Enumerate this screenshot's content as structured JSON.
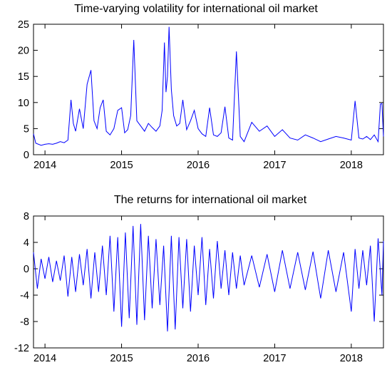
{
  "chart_data": [
    {
      "type": "line",
      "title": "Time-varying volatility for international oil market",
      "xlabel": "",
      "ylabel": "",
      "xlim": [
        2013.85,
        2018.42
      ],
      "ylim": [
        0,
        25
      ],
      "yticks": [
        0,
        5,
        10,
        15,
        20,
        25
      ],
      "xticks": [
        {
          "label": "2014",
          "value": 2014
        },
        {
          "label": "2015",
          "value": 2015
        },
        {
          "label": "2016",
          "value": 2016
        },
        {
          "label": "2017",
          "value": 2017
        },
        {
          "label": "2018",
          "value": 2018
        }
      ],
      "grid": false,
      "color": "#0000ff",
      "x": [
        2013.85,
        2013.88,
        2013.95,
        2014.0,
        2014.05,
        2014.1,
        2014.15,
        2014.2,
        2014.25,
        2014.3,
        2014.34,
        2014.37,
        2014.4,
        2014.45,
        2014.5,
        2014.55,
        2014.6,
        2014.64,
        2014.68,
        2014.72,
        2014.76,
        2014.8,
        2014.85,
        2014.9,
        2014.95,
        2015.0,
        2015.04,
        2015.08,
        2015.12,
        2015.16,
        2015.2,
        2015.25,
        2015.3,
        2015.35,
        2015.4,
        2015.45,
        2015.5,
        2015.53,
        2015.56,
        2015.58,
        2015.6,
        2015.62,
        2015.65,
        2015.68,
        2015.72,
        2015.76,
        2015.8,
        2015.85,
        2015.9,
        2015.95,
        2016.0,
        2016.05,
        2016.1,
        2016.15,
        2016.2,
        2016.25,
        2016.3,
        2016.35,
        2016.4,
        2016.45,
        2016.5,
        2016.55,
        2016.6,
        2016.7,
        2016.8,
        2016.9,
        2017.0,
        2017.1,
        2017.2,
        2017.3,
        2017.4,
        2017.5,
        2017.6,
        2017.7,
        2017.8,
        2017.9,
        2018.0,
        2018.05,
        2018.1,
        2018.15,
        2018.2,
        2018.25,
        2018.3,
        2018.35,
        2018.38,
        2018.4,
        2018.42
      ],
      "values": [
        4.0,
        2.2,
        1.8,
        2.0,
        2.1,
        2.0,
        2.2,
        2.5,
        2.3,
        2.8,
        10.5,
        6.0,
        4.5,
        8.8,
        5.0,
        13.5,
        16.2,
        6.5,
        5.0,
        9.0,
        10.5,
        4.5,
        3.8,
        5.0,
        8.5,
        9.0,
        4.2,
        4.8,
        7.5,
        22.0,
        6.5,
        5.5,
        4.5,
        6.0,
        5.2,
        4.5,
        5.5,
        8.5,
        21.5,
        12.0,
        15.0,
        24.5,
        12.5,
        7.5,
        5.5,
        6.0,
        10.5,
        4.8,
        6.5,
        8.5,
        5.0,
        4.0,
        3.5,
        9.0,
        3.8,
        3.5,
        4.2,
        9.2,
        3.2,
        2.8,
        19.8,
        3.5,
        2.5,
        6.2,
        4.5,
        5.5,
        3.5,
        4.8,
        3.2,
        2.8,
        3.8,
        3.2,
        2.5,
        3.0,
        3.5,
        3.2,
        2.8,
        10.3,
        3.2,
        3.0,
        3.5,
        2.9,
        3.8,
        2.5,
        9.7,
        9.8,
        3.5
      ]
    },
    {
      "type": "line",
      "title": "The returns for international oil market",
      "xlabel": "",
      "ylabel": "",
      "xlim": [
        2013.85,
        2018.42
      ],
      "ylim": [
        -12,
        8
      ],
      "yticks": [
        -12,
        -8,
        -4,
        0,
        4,
        8
      ],
      "xticks": [
        {
          "label": "2014",
          "value": 2014
        },
        {
          "label": "2015",
          "value": 2015
        },
        {
          "label": "2016",
          "value": 2016
        },
        {
          "label": "2017",
          "value": 2017
        },
        {
          "label": "2018",
          "value": 2018
        }
      ],
      "grid": false,
      "color": "#0000ff",
      "x": [
        2013.85,
        2013.9,
        2013.95,
        2014.0,
        2014.05,
        2014.1,
        2014.15,
        2014.2,
        2014.25,
        2014.3,
        2014.35,
        2014.4,
        2014.45,
        2014.5,
        2014.55,
        2014.6,
        2014.65,
        2014.7,
        2014.75,
        2014.8,
        2014.85,
        2014.9,
        2014.95,
        2015.0,
        2015.05,
        2015.1,
        2015.15,
        2015.2,
        2015.25,
        2015.3,
        2015.35,
        2015.4,
        2015.45,
        2015.5,
        2015.55,
        2015.6,
        2015.65,
        2015.7,
        2015.75,
        2015.8,
        2015.85,
        2015.9,
        2015.95,
        2016.0,
        2016.05,
        2016.1,
        2016.15,
        2016.2,
        2016.25,
        2016.3,
        2016.35,
        2016.4,
        2016.45,
        2016.5,
        2016.55,
        2016.6,
        2016.7,
        2016.8,
        2016.9,
        2017.0,
        2017.1,
        2017.2,
        2017.3,
        2017.4,
        2017.5,
        2017.6,
        2017.7,
        2017.8,
        2017.9,
        2018.0,
        2018.05,
        2018.1,
        2018.15,
        2018.2,
        2018.25,
        2018.3,
        2018.35,
        2018.4,
        2018.42
      ],
      "values": [
        2.5,
        -3.0,
        1.5,
        -1.5,
        1.8,
        -2.0,
        1.2,
        -1.8,
        2.0,
        -4.2,
        1.8,
        -3.5,
        2.2,
        -2.5,
        3.0,
        -4.5,
        2.5,
        -3.5,
        3.5,
        -4.0,
        5.0,
        -6.5,
        4.8,
        -8.8,
        5.5,
        -7.5,
        6.5,
        -8.5,
        6.8,
        -7.8,
        5.0,
        -6.0,
        4.5,
        -5.5,
        3.5,
        -9.5,
        5.0,
        -9.2,
        4.8,
        -6.0,
        4.5,
        -6.5,
        3.5,
        -4.0,
        4.8,
        -5.5,
        3.0,
        -4.5,
        4.2,
        -3.0,
        2.8,
        -4.0,
        2.5,
        -3.0,
        2.0,
        -2.5,
        2.0,
        -2.8,
        2.2,
        -3.5,
        2.8,
        -3.0,
        2.5,
        -3.2,
        2.6,
        -4.5,
        2.8,
        -3.5,
        2.5,
        -6.5,
        3.0,
        -3.0,
        2.8,
        -2.5,
        3.5,
        -8.0,
        4.6,
        -4.0,
        4.2
      ]
    }
  ]
}
